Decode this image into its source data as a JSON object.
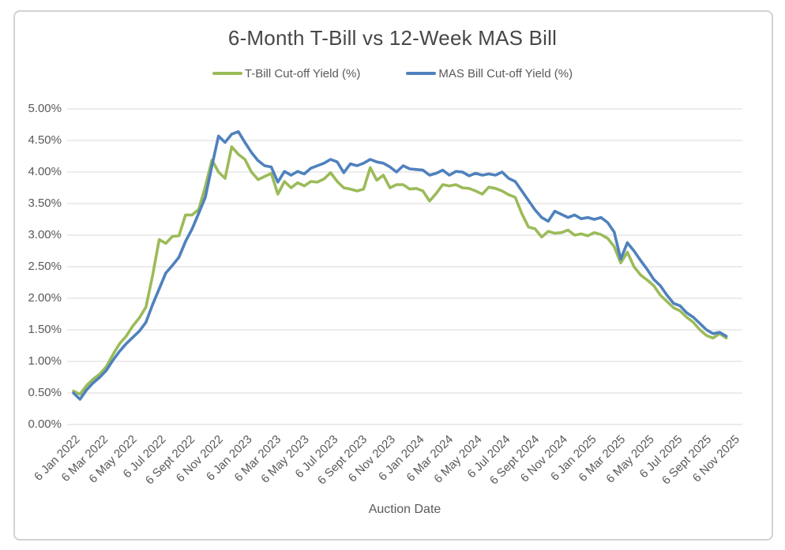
{
  "chart_data": {
    "type": "line",
    "title": "6-Month T-Bill vs 12-Week MAS Bill",
    "xlabel": "Auction Date",
    "ylabel": "",
    "ylim": [
      0,
      5
    ],
    "grid": true,
    "legend_position": "top-center",
    "y_ticks": [
      "5.00%",
      "4.50%",
      "4.00%",
      "3.50%",
      "3.00%",
      "2.50%",
      "2.00%",
      "1.50%",
      "1.00%",
      "0.50%",
      "0.00%"
    ],
    "x_tick_labels": [
      "6 Jan 2022",
      "6 Mar 2022",
      "6 May 2022",
      "6 Jul 2022",
      "6 Sept 2022",
      "6 Nov 2022",
      "6 Jan 2023",
      "6 Mar 2023",
      "6 May 2023",
      "6 Jul 2023",
      "6 Sept 2023",
      "6 Nov 2023",
      "6 Jan 2024",
      "6 Mar 2024",
      "6 May 2024",
      "6 Jul 2024",
      "6 Sept 2024",
      "6 Nov 2024",
      "6 Jan 2025",
      "6 Mar 2025",
      "6 May 2025",
      "6 Jul 2025",
      "6 Sept 2025",
      "6 Nov 2025"
    ],
    "x_points_note": "auctions every 2 weeks from 6 Jan 2022",
    "series": [
      {
        "name": "T-Bill Cut-off Yield (%)",
        "color": "#9BBB59",
        "values": [
          0.53,
          0.48,
          0.62,
          0.72,
          0.8,
          0.92,
          1.11,
          1.28,
          1.4,
          1.56,
          1.69,
          1.86,
          2.36,
          2.93,
          2.87,
          2.98,
          2.99,
          3.32,
          3.32,
          3.41,
          3.77,
          4.19,
          4.0,
          3.9,
          4.4,
          4.28,
          4.2,
          4.0,
          3.88,
          3.93,
          3.98,
          3.65,
          3.85,
          3.75,
          3.83,
          3.78,
          3.85,
          3.84,
          3.89,
          3.99,
          3.85,
          3.75,
          3.73,
          3.7,
          3.73,
          4.07,
          3.87,
          3.95,
          3.75,
          3.8,
          3.8,
          3.73,
          3.74,
          3.7,
          3.54,
          3.66,
          3.8,
          3.78,
          3.8,
          3.75,
          3.74,
          3.7,
          3.65,
          3.76,
          3.74,
          3.7,
          3.64,
          3.6,
          3.34,
          3.13,
          3.1,
          2.97,
          3.06,
          3.03,
          3.04,
          3.08,
          3.0,
          3.02,
          2.99,
          3.04,
          3.01,
          2.95,
          2.82,
          2.56,
          2.73,
          2.5,
          2.37,
          2.29,
          2.2,
          2.05,
          1.95,
          1.85,
          1.8,
          1.7,
          1.62,
          1.5,
          1.41,
          1.37,
          1.44,
          1.37
        ]
      },
      {
        "name": "MAS Bill Cut-off Yield (%)",
        "color": "#4F81BD",
        "values": [
          0.5,
          0.4,
          0.55,
          0.66,
          0.75,
          0.86,
          1.02,
          1.16,
          1.28,
          1.38,
          1.48,
          1.62,
          1.9,
          2.15,
          2.4,
          2.52,
          2.65,
          2.9,
          3.1,
          3.35,
          3.6,
          4.1,
          4.57,
          4.47,
          4.6,
          4.64,
          4.47,
          4.31,
          4.18,
          4.1,
          4.08,
          3.84,
          4.01,
          3.95,
          4.01,
          3.97,
          4.06,
          4.1,
          4.14,
          4.2,
          4.16,
          3.99,
          4.13,
          4.1,
          4.14,
          4.2,
          4.16,
          4.14,
          4.08,
          4.0,
          4.1,
          4.05,
          4.04,
          4.03,
          3.95,
          3.98,
          4.03,
          3.95,
          4.01,
          4.0,
          3.94,
          3.98,
          3.95,
          3.97,
          3.95,
          4.0,
          3.9,
          3.85,
          3.7,
          3.55,
          3.4,
          3.28,
          3.22,
          3.38,
          3.33,
          3.28,
          3.32,
          3.26,
          3.28,
          3.25,
          3.28,
          3.2,
          3.05,
          2.62,
          2.88,
          2.75,
          2.6,
          2.46,
          2.3,
          2.2,
          2.05,
          1.92,
          1.88,
          1.77,
          1.7,
          1.6,
          1.5,
          1.44,
          1.46,
          1.4
        ]
      }
    ]
  }
}
